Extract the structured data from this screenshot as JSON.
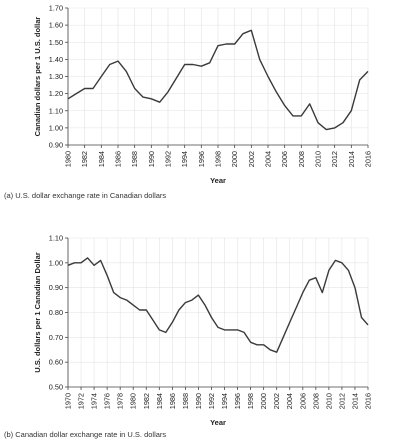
{
  "chart_data": [
    {
      "type": "line",
      "title": "",
      "caption": "(a) U.S. dollar exchange rate in Canadian dollars",
      "xlabel": "Year",
      "ylabel": "Canadian dollars per 1 U.S. dollar",
      "xlim": [
        1980,
        2016
      ],
      "ylim": [
        0.9,
        1.7
      ],
      "grid": true,
      "x_ticks": [
        "1980",
        "1982",
        "1984",
        "1986",
        "1988",
        "1990",
        "1992",
        "1994",
        "1996",
        "1998",
        "2000",
        "2002",
        "2004",
        "2006",
        "2008",
        "2010",
        "2012",
        "2014",
        "2016"
      ],
      "y_ticks": [
        "0.90",
        "1.00",
        "1.10",
        "1.20",
        "1.30",
        "1.40",
        "1.50",
        "1.60",
        "1.70"
      ],
      "x": [
        1980,
        1981,
        1982,
        1983,
        1984,
        1985,
        1986,
        1987,
        1988,
        1989,
        1990,
        1991,
        1992,
        1993,
        1994,
        1995,
        1996,
        1997,
        1998,
        1999,
        2000,
        2001,
        2002,
        2003,
        2004,
        2005,
        2006,
        2007,
        2008,
        2009,
        2010,
        2011,
        2012,
        2013,
        2014,
        2015,
        2016
      ],
      "series": [
        {
          "values": [
            1.17,
            1.2,
            1.23,
            1.23,
            1.3,
            1.37,
            1.39,
            1.33,
            1.23,
            1.18,
            1.17,
            1.15,
            1.21,
            1.29,
            1.37,
            1.37,
            1.36,
            1.38,
            1.48,
            1.49,
            1.49,
            1.55,
            1.57,
            1.4,
            1.3,
            1.21,
            1.13,
            1.07,
            1.07,
            1.14,
            1.03,
            0.99,
            1.0,
            1.03,
            1.1,
            1.28,
            1.33
          ]
        }
      ]
    },
    {
      "type": "line",
      "title": "",
      "caption": "(b) Canadian dollar exchange rate in U.S. dollars",
      "xlabel": "Year",
      "ylabel": "U.S. dollars per 1 Canadian Dollar",
      "xlim": [
        1970,
        2016
      ],
      "ylim": [
        0.5,
        1.1
      ],
      "grid": true,
      "x_ticks": [
        "1970",
        "1972",
        "1974",
        "1976",
        "1978",
        "1980",
        "1982",
        "1984",
        "1986",
        "1988",
        "1990",
        "1992",
        "1994",
        "1996",
        "1998",
        "2000",
        "2002",
        "2004",
        "2006",
        "2008",
        "2010",
        "2012",
        "2014",
        "2016"
      ],
      "y_ticks": [
        "0.50",
        "0.60",
        "0.70",
        "0.80",
        "0.90",
        "1.00",
        "1.10"
      ],
      "x": [
        1970,
        1971,
        1972,
        1973,
        1974,
        1975,
        1976,
        1977,
        1978,
        1979,
        1980,
        1981,
        1982,
        1983,
        1984,
        1985,
        1986,
        1987,
        1988,
        1989,
        1990,
        1991,
        1992,
        1993,
        1994,
        1995,
        1996,
        1997,
        1998,
        1999,
        2000,
        2001,
        2002,
        2003,
        2004,
        2005,
        2006,
        2007,
        2008,
        2009,
        2010,
        2011,
        2012,
        2013,
        2014,
        2015,
        2016
      ],
      "series": [
        {
          "values": [
            0.99,
            1.0,
            1.0,
            1.02,
            0.99,
            1.01,
            0.95,
            0.88,
            0.86,
            0.85,
            0.83,
            0.81,
            0.81,
            0.77,
            0.73,
            0.72,
            0.76,
            0.81,
            0.84,
            0.85,
            0.87,
            0.83,
            0.78,
            0.74,
            0.73,
            0.73,
            0.73,
            0.72,
            0.68,
            0.67,
            0.67,
            0.65,
            0.64,
            0.7,
            0.76,
            0.82,
            0.88,
            0.93,
            0.94,
            0.88,
            0.97,
            1.01,
            1.0,
            0.97,
            0.9,
            0.78,
            0.75
          ]
        }
      ]
    }
  ]
}
